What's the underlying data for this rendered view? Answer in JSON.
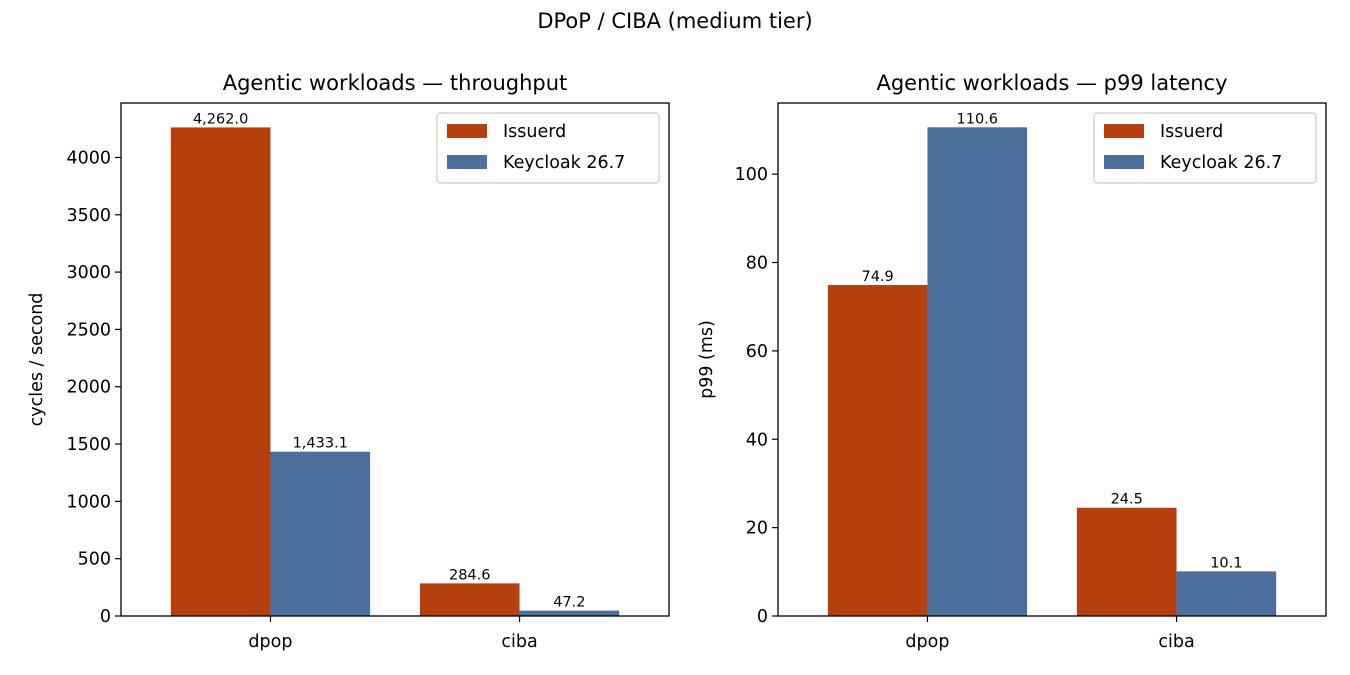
{
  "figure": {
    "suptitle": "DPoP / CIBA (medium tier)"
  },
  "colors": {
    "issuerd": "#b5400e",
    "keycloak": "#4c6f9c"
  },
  "chart_data": [
    {
      "type": "bar",
      "title": "Agentic workloads — throughput",
      "xlabel": "",
      "ylabel": "cycles / second",
      "categories": [
        "dpop",
        "ciba"
      ],
      "series": [
        {
          "name": "Issuerd",
          "values": [
            4262.0,
            284.6
          ],
          "labels": [
            "4,262.0",
            "284.6"
          ],
          "color": "#b5400e"
        },
        {
          "name": "Keycloak 26.7",
          "values": [
            1433.1,
            47.2
          ],
          "labels": [
            "1,433.1",
            "47.2"
          ],
          "color": "#4c6f9c"
        }
      ],
      "yticks": [
        0,
        500,
        1000,
        1500,
        2000,
        2500,
        3000,
        3500,
        4000
      ],
      "ylim": [
        0,
        4475
      ],
      "grid": false,
      "legend": "top-right"
    },
    {
      "type": "bar",
      "title": "Agentic workloads — p99 latency",
      "xlabel": "",
      "ylabel": "p99 (ms)",
      "categories": [
        "dpop",
        "ciba"
      ],
      "series": [
        {
          "name": "Issuerd",
          "values": [
            74.9,
            24.5
          ],
          "labels": [
            "74.9",
            "24.5"
          ],
          "color": "#b5400e"
        },
        {
          "name": "Keycloak 26.7",
          "values": [
            110.6,
            10.1
          ],
          "labels": [
            "110.6",
            "10.1"
          ],
          "color": "#4c6f9c"
        }
      ],
      "yticks": [
        0,
        20,
        40,
        60,
        80,
        100
      ],
      "ylim": [
        0,
        116.1
      ],
      "grid": false,
      "legend": "top-right"
    }
  ]
}
